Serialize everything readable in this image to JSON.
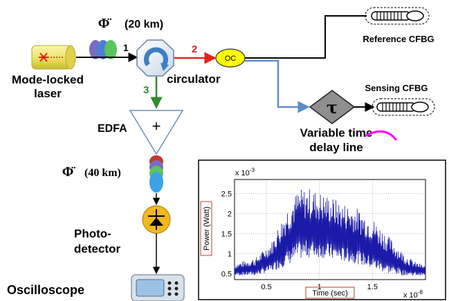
{
  "diagram": {
    "phi_symbol": "Φ̈",
    "phi_label_1": "(20 km)",
    "phi_label_2": "(40 km)",
    "laser_label_1": "Mode-locked",
    "laser_label_2": "laser",
    "circulator_label": "circulator",
    "port_1": "1",
    "port_2": "2",
    "port_3": "3",
    "oc_label": "OC",
    "reference_label": "Reference CFBG",
    "sensing_label": "Sensing CFBG",
    "tau_symbol": "τ",
    "delay_label_1": "Variable time",
    "delay_label_2": "delay line",
    "edfa_label": "EDFA",
    "edfa_plus": "+",
    "photo_label_1": "Photo-",
    "photo_label_2": "detector",
    "scope_label": "Oscilloscope",
    "colors": {
      "red_arrow": "#e8201c",
      "green_arrow": "#2e8b2e",
      "blue_line": "#5b8bc9",
      "oc_fill": "#ffff00",
      "delay_fill": "#909090",
      "detector_fill": "#f2b81c",
      "magenta": "#ff00ff",
      "laser_fill": "#f5f08c",
      "scope_fill": "#9cc3e6"
    }
  },
  "chart_data": {
    "type": "line",
    "xlabel": "Time (sec)",
    "ylabel": "Power (Watt)",
    "x_exponent": "x 10",
    "x_exponent_power": "-8",
    "y_exponent": "x 10",
    "y_exponent_power": "-3",
    "xlim": [
      0.2,
      2.0
    ],
    "ylim": [
      0.35,
      2.85
    ],
    "x_ticks": [
      "0.5",
      "1",
      "1.5"
    ],
    "y_ticks": [
      "0.5",
      "1",
      "1.5",
      "2",
      "2.5"
    ],
    "grid": true,
    "line_color": "#1a1aa8",
    "envelope": {
      "x": [
        0.2,
        0.4,
        0.55,
        0.7,
        0.8,
        0.9,
        1.0,
        1.1,
        1.2,
        1.35,
        1.5,
        1.65,
        1.8,
        1.9,
        2.0
      ],
      "upper": [
        0.75,
        0.9,
        1.3,
        2.2,
        2.6,
        2.65,
        2.55,
        2.45,
        2.3,
        2.15,
        1.9,
        1.45,
        1.0,
        0.8,
        0.7
      ],
      "lower": [
        0.45,
        0.45,
        0.55,
        0.7,
        0.85,
        0.9,
        0.9,
        0.85,
        0.8,
        0.75,
        0.6,
        0.5,
        0.45,
        0.45,
        0.45
      ]
    }
  }
}
